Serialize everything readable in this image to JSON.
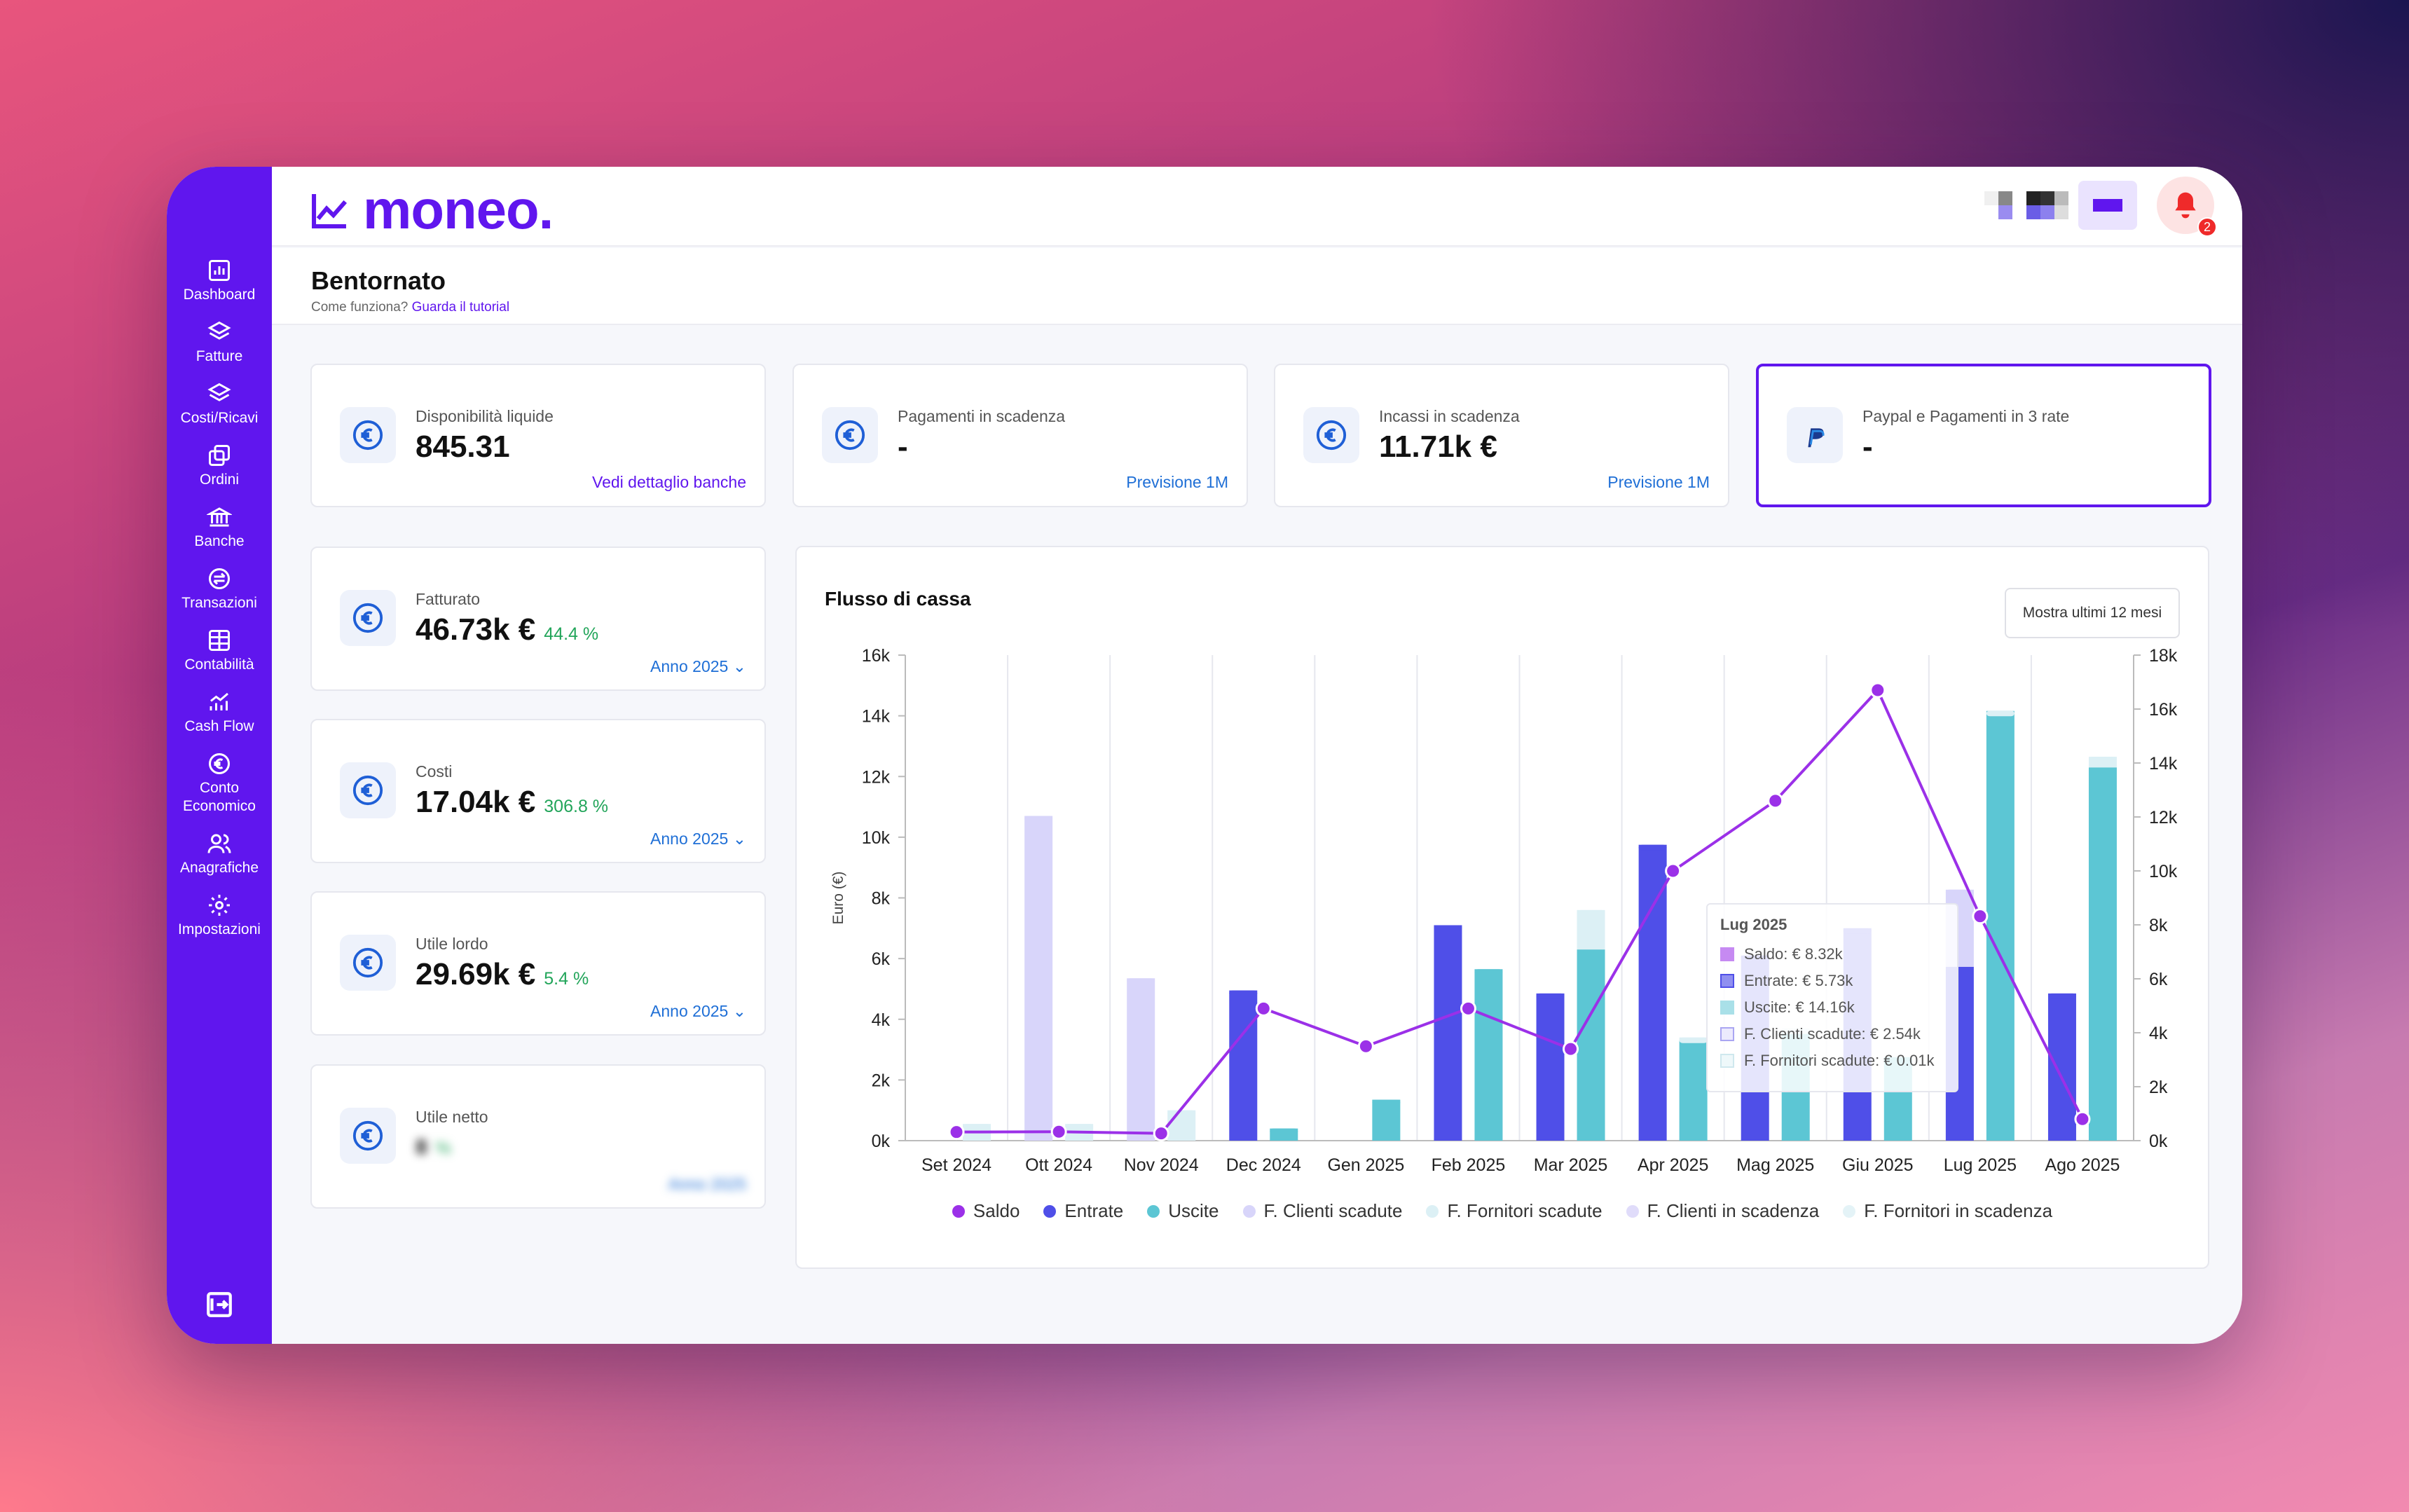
{
  "app": {
    "logo_text": "moneo.",
    "notification_count": "2"
  },
  "sidebar": {
    "items": [
      {
        "label": "Dashboard",
        "icon": "bar-chart-icon"
      },
      {
        "label": "Fatture",
        "icon": "layers-icon"
      },
      {
        "label": "Costi/Ricavi",
        "icon": "layers-icon"
      },
      {
        "label": "Ordini",
        "icon": "copy-icon"
      },
      {
        "label": "Banche",
        "icon": "bank-icon"
      },
      {
        "label": "Transazioni",
        "icon": "transfer-icon"
      },
      {
        "label": "Contabilità",
        "icon": "table-icon"
      },
      {
        "label": "Cash Flow",
        "icon": "chart-growth-icon"
      },
      {
        "label": "Conto Economico",
        "icon": "euro-icon"
      },
      {
        "label": "Anagrafiche",
        "icon": "users-icon"
      },
      {
        "label": "Impostazioni",
        "icon": "gear-icon"
      }
    ]
  },
  "header": {
    "title": "Bentornato",
    "subtitle": "Come funziona?",
    "tutorial_link": "Guarda il tutorial"
  },
  "kpis": [
    {
      "label": "Disponibilità liquide",
      "value": "845.31",
      "link": "Vedi dettaglio banche"
    },
    {
      "label": "Pagamenti in scadenza",
      "value": "-",
      "link": "Previsione 1M"
    },
    {
      "label": "Incassi in scadenza",
      "value": "11.71k €",
      "link": "Previsione 1M"
    },
    {
      "label": "Paypal e Pagamenti in 3 rate",
      "value": "-"
    }
  ],
  "metrics": [
    {
      "label": "Fatturato",
      "value": "46.73k €",
      "pct": "44.4 %",
      "period": "Anno 2025"
    },
    {
      "label": "Costi",
      "value": "17.04k €",
      "pct": "306.8 %",
      "period": "Anno 2025"
    },
    {
      "label": "Utile lordo",
      "value": "29.69k €",
      "pct": "5.4 %",
      "period": "Anno 2025"
    },
    {
      "label": "Utile netto",
      "value": "8",
      "pct": "%",
      "period": "Anno 2025"
    }
  ],
  "chart": {
    "title": "Flusso di cassa",
    "button": "Mostra ultimi 12 mesi"
  },
  "tooltip": {
    "title": "Lug 2025",
    "rows": [
      "Saldo: € 8.32k",
      "Entrate: € 5.73k",
      "Uscite: € 14.16k",
      "F. Clienti scadute: € 2.54k",
      "F. Fornitori scadute: € 0.01k"
    ]
  },
  "colors": {
    "saldo": "#9b30e8",
    "entrate": "#4f4fe8",
    "uscite": "#5cc6d4",
    "clienti_scadute": "#d8d5fa",
    "fornitori_scadute": "#dcf0f5",
    "clienti_in_scadenza": "#e0dcfa",
    "fornitori_in_scadenza": "#e4f3f7",
    "brand": "#6016ee"
  },
  "chart_data": {
    "type": "bar",
    "categories": [
      "Set 2024",
      "Ott 2024",
      "Nov 2024",
      "Dec 2024",
      "Gen 2025",
      "Feb 2025",
      "Mar 2025",
      "Apr 2025",
      "Mag 2025",
      "Giu 2025",
      "Lug 2025",
      "Ago 2025"
    ],
    "ylabel": "Euro (€)",
    "ylim": [
      0,
      16000
    ],
    "y_ticks": [
      "0k",
      "2k",
      "4k",
      "6k",
      "8k",
      "10k",
      "12k",
      "14k",
      "16k"
    ],
    "y2lim": [
      0,
      18000
    ],
    "y2_ticks": [
      "0k",
      "2k",
      "4k",
      "6k",
      "8k",
      "10k",
      "12k",
      "14k",
      "16k",
      "18k"
    ],
    "legend_position": "bottom",
    "series": [
      {
        "name": "Saldo",
        "type": "line",
        "axis": "right",
        "values": [
          320,
          330,
          270,
          4900,
          3500,
          4900,
          3400,
          10000,
          12600,
          16700,
          8320,
          800
        ]
      },
      {
        "name": "Entrate",
        "type": "bar",
        "stack": "a",
        "values": [
          0,
          0,
          0,
          4950,
          0,
          7100,
          4850,
          9750,
          6100,
          7000,
          5730,
          4850
        ]
      },
      {
        "name": "Uscite",
        "type": "bar",
        "stack": "b",
        "values": [
          0,
          0,
          0,
          400,
          1350,
          5650,
          6300,
          3300,
          3550,
          2750,
          14160,
          12300
        ]
      },
      {
        "name": "F. Clienti scadute",
        "type": "bar",
        "stack": "a",
        "values": [
          0,
          10700,
          5350,
          0,
          0,
          0,
          0,
          0,
          0,
          0,
          2540,
          0
        ]
      },
      {
        "name": "F. Fornitori scadute",
        "type": "bar",
        "stack": "b",
        "values": [
          550,
          550,
          1000,
          0,
          0,
          0,
          1300,
          100,
          150,
          0,
          10,
          350
        ]
      },
      {
        "name": "F. Clienti in scadenza",
        "type": "bar",
        "stack": "a",
        "values": [
          0,
          0,
          0,
          0,
          0,
          0,
          0,
          0,
          0,
          0,
          0,
          0
        ]
      },
      {
        "name": "F. Fornitori in scadenza",
        "type": "bar",
        "stack": "b",
        "values": [
          0,
          0,
          0,
          0,
          0,
          0,
          0,
          0,
          0,
          0,
          0,
          0
        ]
      }
    ]
  }
}
